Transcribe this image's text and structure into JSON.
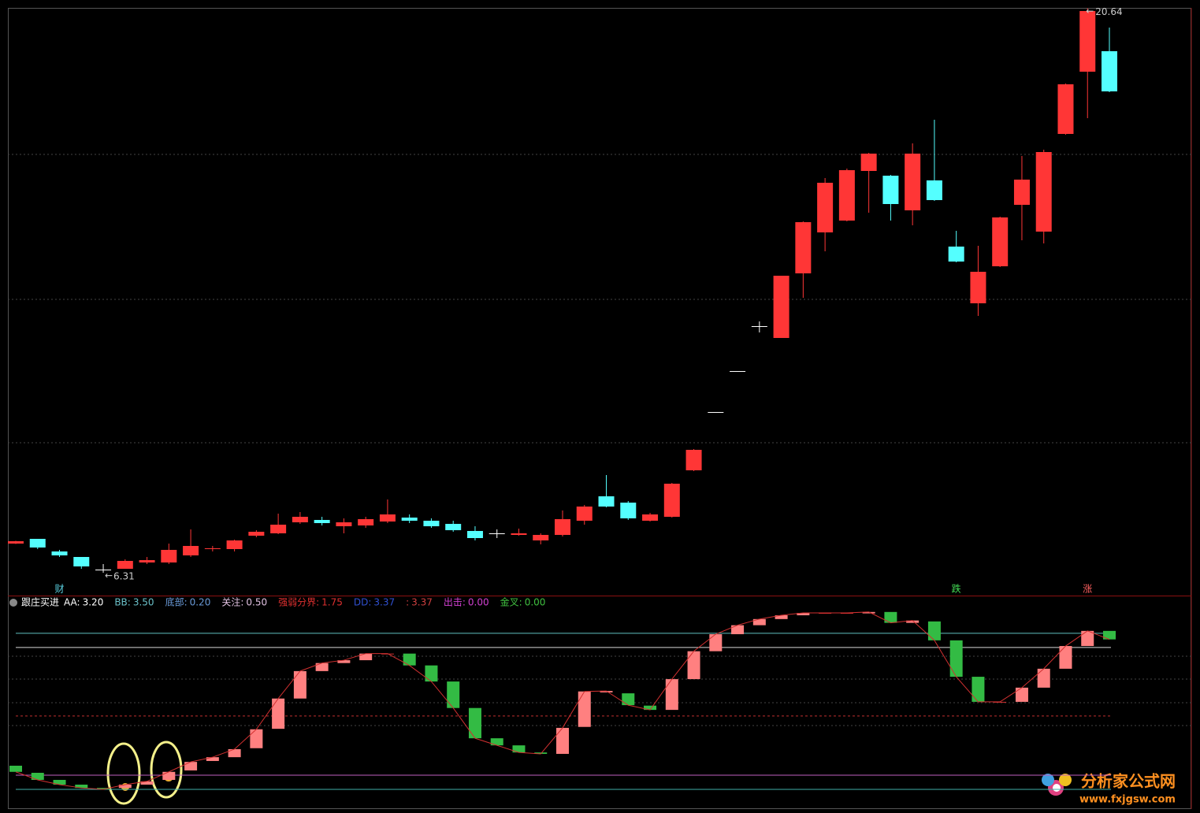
{
  "chart_data": [
    {
      "type": "candlestick",
      "up_color": "#ff3636",
      "down_color": "#54ffff",
      "flat_color": "#ffffff",
      "ylim": [
        5.85,
        20.85
      ],
      "open": [
        7.05,
        7.17,
        6.85,
        6.71,
        6.39,
        6.41,
        6.57,
        6.57,
        6.75,
        6.91,
        6.91,
        7.25,
        7.31,
        7.59,
        7.65,
        7.49,
        7.51,
        7.61,
        7.71,
        7.63,
        7.55,
        7.37,
        7.31,
        7.27,
        7.13,
        7.27,
        7.63,
        8.25,
        8.09,
        7.63,
        7.73,
        8.91,
        10.39,
        11.43,
        12.57,
        12.27,
        13.91,
        14.95,
        15.25,
        16.51,
        16.39,
        15.51,
        16.27,
        14.59,
        13.15,
        14.09,
        15.65,
        14.97,
        17.45,
        19.03,
        19.55
      ],
      "high": [
        7.12,
        7.17,
        6.89,
        6.71,
        6.53,
        6.65,
        6.71,
        7.05,
        7.41,
        6.99,
        7.15,
        7.39,
        7.81,
        7.85,
        7.73,
        7.69,
        7.73,
        8.17,
        7.79,
        7.69,
        7.63,
        7.49,
        7.41,
        7.43,
        7.31,
        7.89,
        8.03,
        8.79,
        8.13,
        7.83,
        8.59,
        9.45,
        10.39,
        11.43,
        12.69,
        13.85,
        15.23,
        16.33,
        16.57,
        16.97,
        16.41,
        17.21,
        17.81,
        14.99,
        14.61,
        15.35,
        16.89,
        17.05,
        18.73,
        20.64,
        20.15
      ],
      "low": [
        7.04,
        6.91,
        6.71,
        6.41,
        6.31,
        6.41,
        6.53,
        6.53,
        6.71,
        6.85,
        6.85,
        7.21,
        7.29,
        7.55,
        7.51,
        7.31,
        7.45,
        7.57,
        7.57,
        7.45,
        7.35,
        7.13,
        7.19,
        7.25,
        7.03,
        7.23,
        7.53,
        7.97,
        7.65,
        7.61,
        7.71,
        8.89,
        10.39,
        11.43,
        12.41,
        12.27,
        13.29,
        14.47,
        15.23,
        15.45,
        15.25,
        15.13,
        15.75,
        14.19,
        12.83,
        14.07,
        14.75,
        14.67,
        17.43,
        17.85,
        18.51
      ],
      "close": [
        7.11,
        6.95,
        6.75,
        6.47,
        6.39,
        6.61,
        6.63,
        6.89,
        6.99,
        6.93,
        7.13,
        7.35,
        7.53,
        7.73,
        7.57,
        7.59,
        7.67,
        7.79,
        7.63,
        7.49,
        7.39,
        7.19,
        7.31,
        7.31,
        7.27,
        7.67,
        7.99,
        7.99,
        7.69,
        7.79,
        8.57,
        9.43,
        10.39,
        11.43,
        12.57,
        13.85,
        15.21,
        16.21,
        16.53,
        16.95,
        15.67,
        16.95,
        15.77,
        14.21,
        13.95,
        15.33,
        16.29,
        16.99,
        18.71,
        20.57,
        18.53
      ],
      "markers": [
        null,
        null,
        "财",
        null,
        null,
        null,
        null,
        null,
        null,
        null,
        null,
        null,
        null,
        null,
        null,
        null,
        null,
        null,
        null,
        null,
        null,
        null,
        null,
        null,
        null,
        null,
        null,
        null,
        null,
        null,
        null,
        null,
        null,
        null,
        null,
        null,
        null,
        null,
        null,
        null,
        null,
        null,
        null,
        "跌",
        null,
        null,
        null,
        null,
        null,
        "涨",
        null
      ],
      "marker_colors": {
        "财": "#5ad0e0",
        "跌": "#44dd55",
        "涨": "#ff6060"
      }
    },
    {
      "type": "indicator",
      "title": "跟庄买进",
      "up_color": "#ff8080",
      "down_color": "#33bb44",
      "line_color": "#d03030",
      "ylim": [
        -0.05,
        4.28
      ],
      "legend": [
        {
          "name": "AA:",
          "value": 3.2,
          "value_label": "3.20",
          "color": "#ffffff",
          "line": "solid",
          "line_color": "#d8d8d8"
        },
        {
          "name": "BB:",
          "value": 3.5,
          "value_label": "3.50",
          "color": "#6ac0c8",
          "line": "solid",
          "line_color": "#5fbfbf"
        },
        {
          "name": "底部:",
          "value": 0.2,
          "value_label": "0.20",
          "color": "#6a9ad8",
          "line": "solid",
          "line_color": "#40b0a8"
        },
        {
          "name": "关注:",
          "value": 0.5,
          "value_label": "0.50",
          "color": "#e0c0e0",
          "line": "solid",
          "line_color": "#c060c0"
        },
        {
          "name": "强弱分界:",
          "value": 1.75,
          "value_label": "1.75",
          "color": "#e03030",
          "line": "dashed",
          "line_color": "#c03030"
        },
        {
          "name": "DD:",
          "value": 3.37,
          "value_label": "3.37",
          "color": "#3050d0"
        },
        {
          "name": ":",
          "value": 3.37,
          "value_label": "3.37",
          "color": "#d04040"
        },
        {
          "name": "出击:",
          "value": 0,
          "value_label": "0.00",
          "color": "#d040d0"
        },
        {
          "name": "金叉:",
          "value": 0,
          "value_label": "0.00",
          "color": "#40c040"
        }
      ],
      "open": [
        0.7,
        0.55,
        0.4,
        0.3,
        0.23,
        0.23,
        0.3,
        0.4,
        0.6,
        0.8,
        0.88,
        1.07,
        1.48,
        2.12,
        2.7,
        2.87,
        2.93,
        3.07,
        3.07,
        2.82,
        2.48,
        1.92,
        1.28,
        1.13,
        0.98,
        0.95,
        1.52,
        2.25,
        2.23,
        1.97,
        1.88,
        2.53,
        3.12,
        3.48,
        3.67,
        3.8,
        3.88,
        3.93,
        3.93,
        3.92,
        3.95,
        3.72,
        3.75,
        3.35,
        2.58,
        2.05,
        2.05,
        2.35,
        2.75,
        3.23,
        3.55
      ],
      "close": [
        0.57,
        0.4,
        0.3,
        0.23,
        0.2,
        0.3,
        0.37,
        0.57,
        0.78,
        0.88,
        1.05,
        1.47,
        2.12,
        2.7,
        2.87,
        2.93,
        3.07,
        3.07,
        2.82,
        2.48,
        1.92,
        1.28,
        1.13,
        0.98,
        0.95,
        1.5,
        2.27,
        2.28,
        1.98,
        1.88,
        2.53,
        3.12,
        3.48,
        3.67,
        3.8,
        3.88,
        3.93,
        3.93,
        3.93,
        3.95,
        3.72,
        3.77,
        3.35,
        2.58,
        2.05,
        2.05,
        2.35,
        2.75,
        3.23,
        3.55,
        3.37
      ]
    }
  ],
  "watermark": {
    "title": "分析家公式网",
    "url": "www.fxjgsw.com"
  }
}
